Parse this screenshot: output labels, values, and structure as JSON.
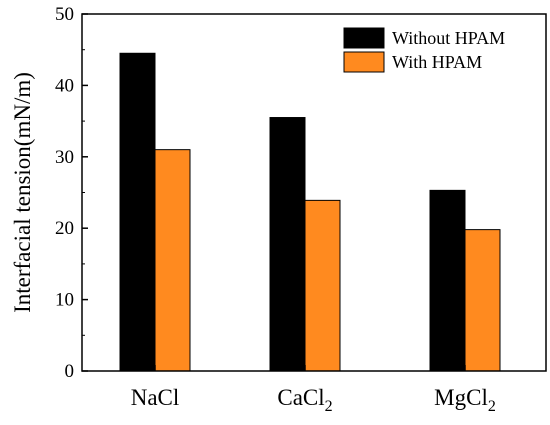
{
  "chart_data": {
    "type": "bar",
    "title": "",
    "xlabel": "",
    "ylabel": "Interfacial tension(mN/m)",
    "ylim": [
      0,
      50
    ],
    "yticks": [
      0,
      10,
      20,
      30,
      40,
      50
    ],
    "categories": [
      {
        "base": "NaCl",
        "sub": ""
      },
      {
        "base": "CaCl",
        "sub": "2"
      },
      {
        "base": "MgCl",
        "sub": "2"
      }
    ],
    "series": [
      {
        "name": "Without HPAM",
        "color": "#000000",
        "values": [
          44.5,
          35.5,
          25.3
        ]
      },
      {
        "name": "With HPAM",
        "color": "#FF8A1F",
        "values": [
          31.0,
          23.9,
          19.8
        ]
      }
    ],
    "legend_position": "top-right",
    "grid": false
  }
}
